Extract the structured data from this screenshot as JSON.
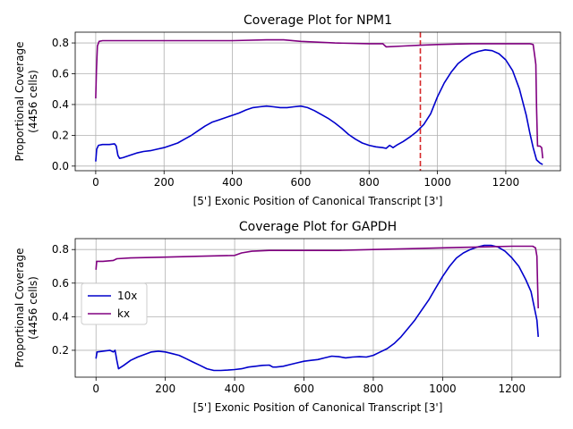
{
  "chart_data": [
    {
      "type": "line",
      "title": "Coverage Plot for NPM1",
      "xlabel": "[5'] Exonic Position of Canonical Transcript [3']",
      "ylabel_line1": "Proportional Coverage",
      "ylabel_line2": "(4456 cells)",
      "xlim": [
        -60,
        1360
      ],
      "ylim": [
        -0.03,
        0.87
      ],
      "xticks": [
        0,
        200,
        400,
        600,
        800,
        1000,
        1200
      ],
      "yticks": [
        0.0,
        0.2,
        0.4,
        0.6,
        0.8
      ],
      "grid": true,
      "vline": {
        "x": 950,
        "color": "#d62728",
        "style": "dashed"
      },
      "series": [
        {
          "name": "10x",
          "color": "#0000cc",
          "points": [
            [
              0,
              0.03
            ],
            [
              3,
              0.11
            ],
            [
              8,
              0.135
            ],
            [
              20,
              0.14
            ],
            [
              40,
              0.14
            ],
            [
              55,
              0.145
            ],
            [
              60,
              0.13
            ],
            [
              65,
              0.07
            ],
            [
              70,
              0.05
            ],
            [
              80,
              0.055
            ],
            [
              100,
              0.07
            ],
            [
              120,
              0.085
            ],
            [
              140,
              0.095
            ],
            [
              160,
              0.1
            ],
            [
              180,
              0.11
            ],
            [
              200,
              0.12
            ],
            [
              220,
              0.135
            ],
            [
              240,
              0.15
            ],
            [
              260,
              0.175
            ],
            [
              280,
              0.2
            ],
            [
              300,
              0.23
            ],
            [
              320,
              0.26
            ],
            [
              340,
              0.285
            ],
            [
              360,
              0.3
            ],
            [
              380,
              0.315
            ],
            [
              400,
              0.33
            ],
            [
              420,
              0.345
            ],
            [
              440,
              0.365
            ],
            [
              460,
              0.38
            ],
            [
              480,
              0.385
            ],
            [
              500,
              0.39
            ],
            [
              520,
              0.385
            ],
            [
              540,
              0.38
            ],
            [
              560,
              0.38
            ],
            [
              580,
              0.385
            ],
            [
              600,
              0.39
            ],
            [
              620,
              0.38
            ],
            [
              640,
              0.36
            ],
            [
              660,
              0.335
            ],
            [
              680,
              0.31
            ],
            [
              700,
              0.28
            ],
            [
              720,
              0.245
            ],
            [
              740,
              0.205
            ],
            [
              760,
              0.175
            ],
            [
              780,
              0.15
            ],
            [
              800,
              0.135
            ],
            [
              820,
              0.125
            ],
            [
              840,
              0.12
            ],
            [
              850,
              0.115
            ],
            [
              860,
              0.135
            ],
            [
              870,
              0.12
            ],
            [
              880,
              0.135
            ],
            [
              900,
              0.16
            ],
            [
              920,
              0.19
            ],
            [
              940,
              0.225
            ],
            [
              960,
              0.27
            ],
            [
              980,
              0.34
            ],
            [
              1000,
              0.45
            ],
            [
              1020,
              0.54
            ],
            [
              1040,
              0.61
            ],
            [
              1060,
              0.665
            ],
            [
              1080,
              0.7
            ],
            [
              1100,
              0.73
            ],
            [
              1120,
              0.745
            ],
            [
              1140,
              0.755
            ],
            [
              1160,
              0.75
            ],
            [
              1180,
              0.73
            ],
            [
              1200,
              0.69
            ],
            [
              1220,
              0.62
            ],
            [
              1240,
              0.5
            ],
            [
              1260,
              0.33
            ],
            [
              1270,
              0.22
            ],
            [
              1280,
              0.12
            ],
            [
              1290,
              0.04
            ],
            [
              1300,
              0.02
            ],
            [
              1308,
              0.01
            ]
          ]
        },
        {
          "name": "kx",
          "color": "#800080",
          "points": [
            [
              0,
              0.44
            ],
            [
              2,
              0.62
            ],
            [
              5,
              0.78
            ],
            [
              10,
              0.81
            ],
            [
              20,
              0.815
            ],
            [
              50,
              0.815
            ],
            [
              100,
              0.815
            ],
            [
              200,
              0.815
            ],
            [
              300,
              0.815
            ],
            [
              400,
              0.815
            ],
            [
              500,
              0.82
            ],
            [
              550,
              0.82
            ],
            [
              600,
              0.81
            ],
            [
              700,
              0.8
            ],
            [
              800,
              0.795
            ],
            [
              840,
              0.795
            ],
            [
              850,
              0.775
            ],
            [
              900,
              0.78
            ],
            [
              950,
              0.785
            ],
            [
              1000,
              0.79
            ],
            [
              1100,
              0.795
            ],
            [
              1200,
              0.795
            ],
            [
              1270,
              0.795
            ],
            [
              1280,
              0.79
            ],
            [
              1285,
              0.71
            ],
            [
              1288,
              0.66
            ],
            [
              1290,
              0.38
            ],
            [
              1293,
              0.13
            ],
            [
              1300,
              0.13
            ],
            [
              1305,
              0.12
            ],
            [
              1308,
              0.05
            ]
          ]
        }
      ]
    },
    {
      "type": "line",
      "title": "Coverage Plot for GAPDH",
      "xlabel": "[5'] Exonic Position of Canonical Transcript [3']",
      "ylabel_line1": "Proportional Coverage",
      "ylabel_line2": "(4456 cells)",
      "xlim": [
        -60,
        1340
      ],
      "ylim": [
        0.04,
        0.865
      ],
      "xticks": [
        0,
        200,
        400,
        600,
        800,
        1000,
        1200
      ],
      "yticks": [
        0.2,
        0.4,
        0.6,
        0.8
      ],
      "grid": true,
      "legend": {
        "placement": "center-left",
        "entries": [
          "10x",
          "kx"
        ]
      },
      "series": [
        {
          "name": "10x",
          "color": "#0000cc",
          "points": [
            [
              0,
              0.15
            ],
            [
              3,
              0.19
            ],
            [
              20,
              0.195
            ],
            [
              40,
              0.2
            ],
            [
              50,
              0.19
            ],
            [
              55,
              0.2
            ],
            [
              60,
              0.14
            ],
            [
              65,
              0.09
            ],
            [
              80,
              0.11
            ],
            [
              100,
              0.14
            ],
            [
              120,
              0.16
            ],
            [
              140,
              0.175
            ],
            [
              160,
              0.19
            ],
            [
              180,
              0.195
            ],
            [
              200,
              0.19
            ],
            [
              220,
              0.18
            ],
            [
              240,
              0.17
            ],
            [
              260,
              0.15
            ],
            [
              280,
              0.13
            ],
            [
              300,
              0.11
            ],
            [
              320,
              0.09
            ],
            [
              340,
              0.08
            ],
            [
              360,
              0.08
            ],
            [
              380,
              0.082
            ],
            [
              400,
              0.085
            ],
            [
              420,
              0.09
            ],
            [
              440,
              0.1
            ],
            [
              460,
              0.105
            ],
            [
              480,
              0.11
            ],
            [
              500,
              0.112
            ],
            [
              510,
              0.1
            ],
            [
              520,
              0.1
            ],
            [
              540,
              0.105
            ],
            [
              560,
              0.115
            ],
            [
              580,
              0.125
            ],
            [
              600,
              0.135
            ],
            [
              620,
              0.14
            ],
            [
              640,
              0.145
            ],
            [
              660,
              0.155
            ],
            [
              680,
              0.165
            ],
            [
              700,
              0.162
            ],
            [
              720,
              0.155
            ],
            [
              740,
              0.16
            ],
            [
              760,
              0.162
            ],
            [
              780,
              0.16
            ],
            [
              800,
              0.17
            ],
            [
              820,
              0.19
            ],
            [
              840,
              0.21
            ],
            [
              860,
              0.24
            ],
            [
              880,
              0.28
            ],
            [
              900,
              0.33
            ],
            [
              920,
              0.38
            ],
            [
              940,
              0.44
            ],
            [
              960,
              0.5
            ],
            [
              980,
              0.57
            ],
            [
              1000,
              0.64
            ],
            [
              1020,
              0.7
            ],
            [
              1040,
              0.75
            ],
            [
              1060,
              0.78
            ],
            [
              1080,
              0.8
            ],
            [
              1100,
              0.815
            ],
            [
              1120,
              0.825
            ],
            [
              1140,
              0.825
            ],
            [
              1160,
              0.815
            ],
            [
              1180,
              0.79
            ],
            [
              1200,
              0.75
            ],
            [
              1220,
              0.7
            ],
            [
              1240,
              0.62
            ],
            [
              1255,
              0.55
            ],
            [
              1265,
              0.45
            ],
            [
              1272,
              0.38
            ],
            [
              1276,
              0.28
            ]
          ]
        },
        {
          "name": "kx",
          "color": "#800080",
          "points": [
            [
              0,
              0.68
            ],
            [
              2,
              0.73
            ],
            [
              20,
              0.73
            ],
            [
              50,
              0.735
            ],
            [
              60,
              0.745
            ],
            [
              100,
              0.75
            ],
            [
              200,
              0.755
            ],
            [
              300,
              0.76
            ],
            [
              400,
              0.765
            ],
            [
              420,
              0.78
            ],
            [
              450,
              0.79
            ],
            [
              500,
              0.795
            ],
            [
              600,
              0.795
            ],
            [
              700,
              0.795
            ],
            [
              800,
              0.8
            ],
            [
              900,
              0.805
            ],
            [
              1000,
              0.81
            ],
            [
              1100,
              0.815
            ],
            [
              1200,
              0.82
            ],
            [
              1260,
              0.82
            ],
            [
              1268,
              0.81
            ],
            [
              1272,
              0.76
            ],
            [
              1274,
              0.6
            ],
            [
              1276,
              0.45
            ]
          ]
        }
      ]
    }
  ]
}
